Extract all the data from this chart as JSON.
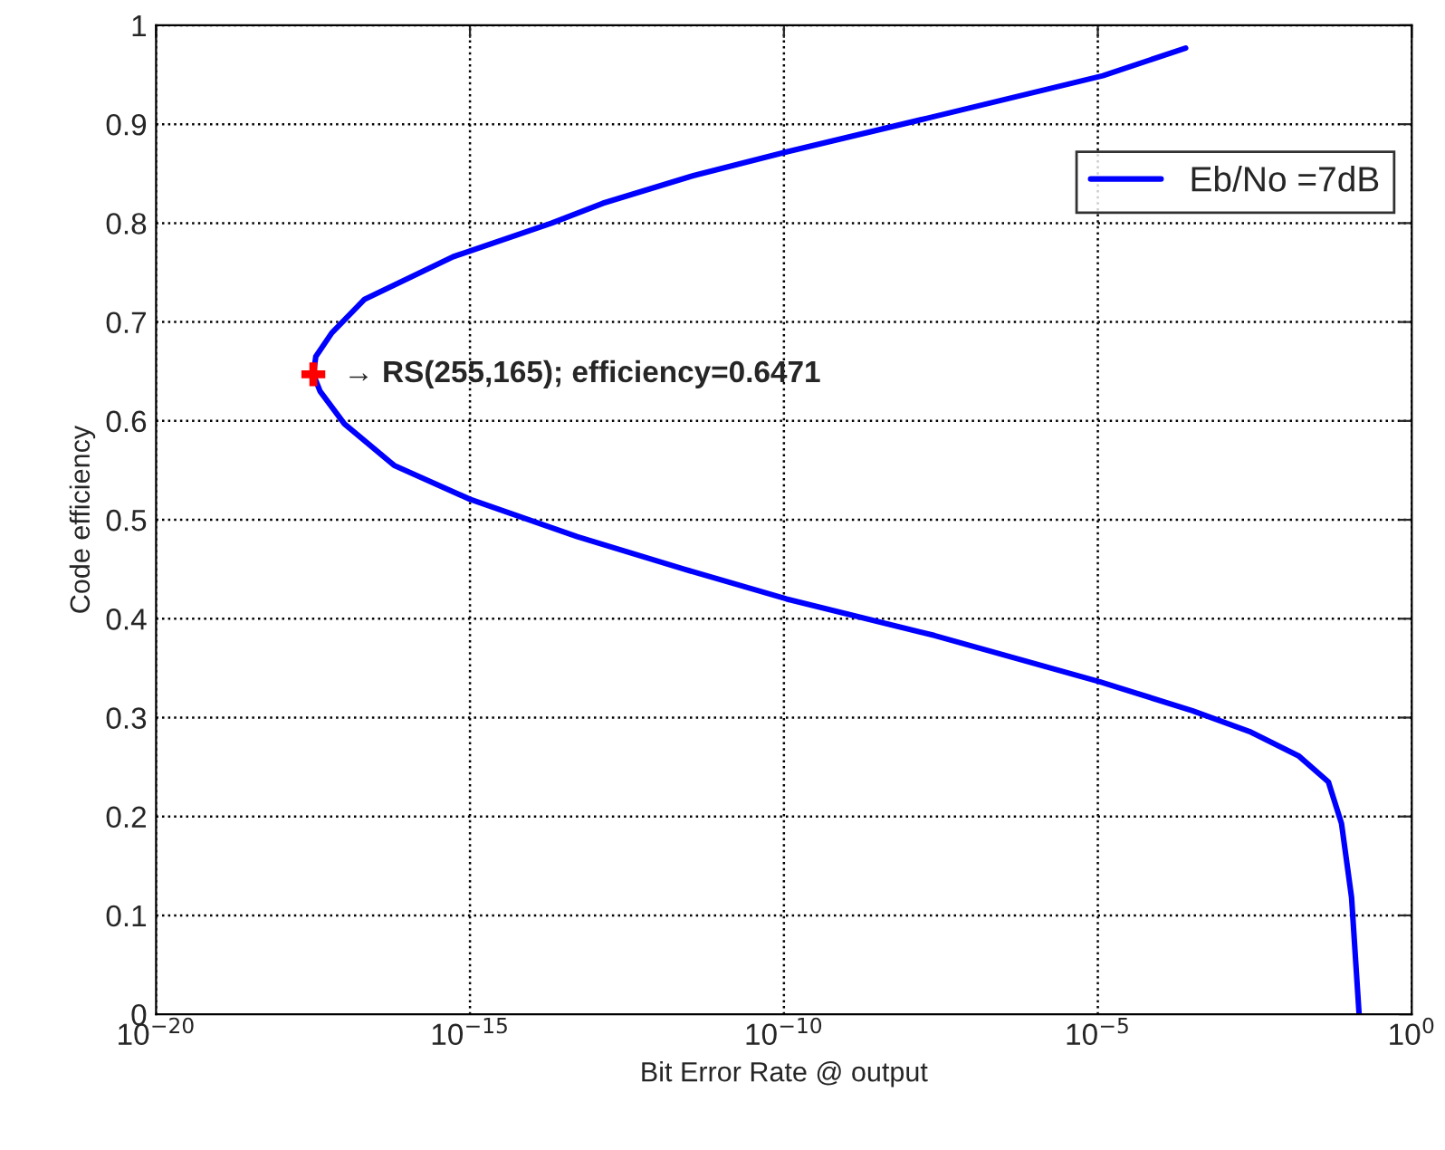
{
  "chart_data": {
    "type": "line",
    "xlabel": "Bit Error Rate @ output",
    "ylabel": "Code efficiency",
    "log": "x",
    "xlim": [
      1e-20,
      1
    ],
    "ylim": [
      0,
      1
    ],
    "xticks": [
      {
        "value": 1e-20,
        "label": "10$^{−20}$"
      },
      {
        "value": 1e-15,
        "label": "10$^{−15}$"
      },
      {
        "value": 1e-10,
        "label": "10$^{−10}$"
      },
      {
        "value": 1e-05,
        "label": "10$^{−5}$"
      },
      {
        "value": 1,
        "label": "10$^{0}$"
      }
    ],
    "yticks": [
      0,
      0.1,
      0.2,
      0.3,
      0.4,
      0.5,
      0.6,
      0.7,
      0.8,
      0.9,
      1
    ],
    "grid": true,
    "legend": "top right",
    "line_style": "solid",
    "series": [
      {
        "name": "Eb/No =7dB",
        "color": "#0000ff",
        "marker": "none",
        "x": [
          0.00025,
          1.2e-05,
          1.9e-08,
          1.1e-10,
          3.6e-12,
          1.3e-13,
          2e-14,
          5.4e-16,
          2.1e-17,
          6.3e-18,
          3.5e-18,
          3.2e-18,
          4.1e-18,
          1e-17,
          6.2e-17,
          9.8e-16,
          5.1e-14,
          2.6e-12,
          1.1e-10,
          2.5e-08,
          1.1e-05,
          0.00032,
          0.0026,
          0.016,
          0.047,
          0.076,
          0.11,
          0.145
        ],
        "values": [
          0.977,
          0.949,
          0.906,
          0.872,
          0.848,
          0.82,
          0.8,
          0.766,
          0.723,
          0.689,
          0.665,
          0.6471,
          0.63,
          0.597,
          0.555,
          0.521,
          0.483,
          0.45,
          0.42,
          0.383,
          0.336,
          0.307,
          0.286,
          0.261,
          0.235,
          0.193,
          0.118,
          0.0
        ]
      },
      {
        "color": "#ff0000",
        "type": "scatter",
        "marker": "cross",
        "x": [
          3.2e-18
        ],
        "values": [
          0.6471
        ]
      }
    ],
    "annotations": [
      {
        "text": "→ RS(255,165); efficiency=0.6471",
        "x": 3.2e-18,
        "y": 0.6471
      }
    ]
  }
}
